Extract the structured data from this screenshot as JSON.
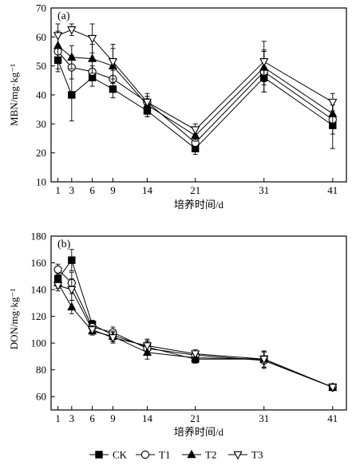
{
  "chart_data": [
    {
      "type": "line",
      "panel_label": "(a)",
      "ylabel": "MBN/mg·kg⁻¹",
      "xlabel": "培养时间/d",
      "x": [
        1,
        3,
        6,
        9,
        14,
        21,
        31,
        41
      ],
      "xticks": [
        "1",
        "3",
        "6",
        "9",
        "14",
        "21",
        "31",
        "41"
      ],
      "ylim": [
        10,
        70
      ],
      "yticks": [
        10,
        20,
        30,
        40,
        50,
        60,
        70
      ],
      "series": [
        {
          "name": "CK",
          "marker": "square-filled",
          "values": [
            52,
            40,
            46,
            42,
            34.5,
            21.5,
            46,
            29.5
          ],
          "err": [
            4,
            9,
            3,
            3,
            2,
            2,
            5,
            8
          ]
        },
        {
          "name": "T1",
          "marker": "circle-open",
          "values": [
            55,
            49.5,
            48,
            45.5,
            37.5,
            23.5,
            48,
            31.5
          ],
          "err": [
            6,
            4,
            2,
            3,
            2,
            2,
            7,
            5
          ]
        },
        {
          "name": "T2",
          "marker": "triangle-up-filled",
          "values": [
            57,
            53,
            52.5,
            50,
            36.5,
            26,
            49.5,
            33.5
          ],
          "err": [
            5,
            4,
            5,
            6,
            4,
            2,
            6,
            4
          ]
        },
        {
          "name": "T3",
          "marker": "triangle-down-open",
          "values": [
            60.5,
            62.5,
            59.5,
            51.5,
            37.5,
            28,
            51.5,
            37.5
          ],
          "err": [
            4,
            2,
            5,
            6,
            2,
            2,
            7,
            3
          ]
        }
      ]
    },
    {
      "type": "line",
      "panel_label": "(b)",
      "ylabel": "DON/mg·kg⁻¹",
      "xlabel": "培养时间/d",
      "x": [
        1,
        3,
        6,
        9,
        14,
        21,
        31,
        41
      ],
      "xticks": [
        "1",
        "3",
        "6",
        "9",
        "14",
        "21",
        "31",
        "41"
      ],
      "ylim": [
        50,
        180
      ],
      "yticks": [
        60,
        80,
        100,
        120,
        140,
        160,
        180
      ],
      "series": [
        {
          "name": "CK",
          "marker": "square-filled",
          "values": [
            148,
            162,
            114,
            106,
            97,
            88,
            88,
            67
          ],
          "err": [
            4,
            8,
            3,
            4,
            5,
            3,
            6,
            2
          ]
        },
        {
          "name": "T1",
          "marker": "circle-open",
          "values": [
            155,
            145,
            112,
            108,
            96,
            91,
            87,
            67
          ],
          "err": [
            4,
            8,
            3,
            4,
            5,
            3,
            6,
            2
          ]
        },
        {
          "name": "T2",
          "marker": "triangle-up-filled",
          "values": [
            145,
            127,
            109,
            105,
            93,
            89,
            88,
            67
          ],
          "err": [
            4,
            5,
            3,
            4,
            5,
            3,
            6,
            2
          ]
        },
        {
          "name": "T3",
          "marker": "triangle-down-open",
          "values": [
            143,
            140,
            110,
            104,
            98,
            92,
            88,
            67
          ],
          "err": [
            4,
            8,
            3,
            4,
            5,
            3,
            6,
            2
          ]
        }
      ]
    }
  ],
  "legend": {
    "placement": "bottom",
    "items": [
      {
        "label": "CK",
        "marker": "square-filled"
      },
      {
        "label": "T1",
        "marker": "circle-open"
      },
      {
        "label": "T2",
        "marker": "triangle-up-filled"
      },
      {
        "label": "T3",
        "marker": "triangle-down-open"
      }
    ]
  }
}
